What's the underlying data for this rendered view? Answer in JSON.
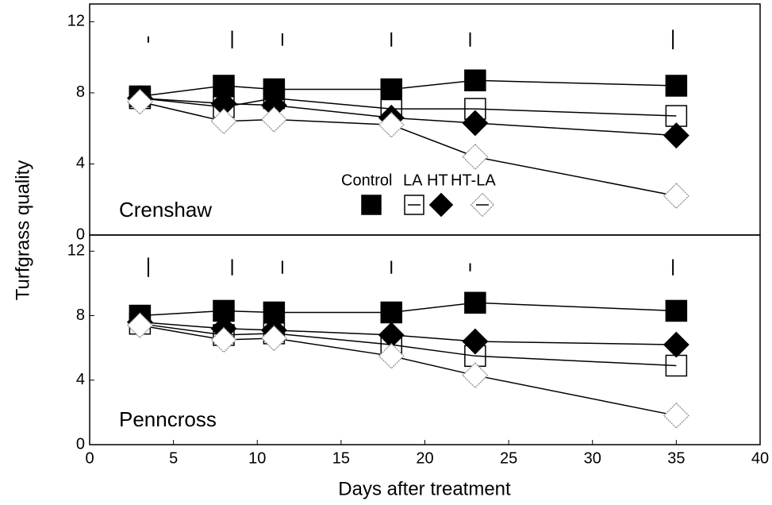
{
  "chart_data": [
    {
      "type": "line",
      "title": "Crenshaw",
      "ylabel": "Turfgrass quality",
      "x": [
        3,
        8,
        11,
        18,
        23,
        35
      ],
      "series": [
        {
          "name": "Control",
          "marker": "square",
          "color": "#000000",
          "fill": "#000000",
          "values": [
            7.8,
            8.4,
            8.2,
            8.2,
            8.7,
            8.4
          ]
        },
        {
          "name": "LA",
          "marker": "square",
          "color": "#000000",
          "fill": "none",
          "values": [
            7.7,
            7.2,
            7.7,
            7.1,
            7.1,
            6.7
          ]
        },
        {
          "name": "HT",
          "marker": "diamond",
          "color": "#000000",
          "fill": "#000000",
          "values": [
            7.7,
            7.4,
            7.3,
            6.6,
            6.3,
            5.6
          ]
        },
        {
          "name": "HT-LA",
          "marker": "diamond",
          "color": "#888888",
          "fill": "#ffffff",
          "values": [
            7.5,
            6.4,
            6.5,
            6.2,
            4.4,
            2.2
          ]
        }
      ],
      "lsd": {
        "center": 11,
        "x": [
          3.5,
          8.5,
          11.5,
          18,
          22.7,
          34.8
        ],
        "values": [
          0.35,
          1.0,
          0.7,
          0.8,
          0.8,
          1.1
        ]
      },
      "xlim": [
        0,
        40
      ],
      "ylim": [
        0,
        13
      ],
      "yticks": [
        0,
        4,
        8,
        12
      ]
    },
    {
      "type": "line",
      "title": "Penncross",
      "xlabel": "Days after treatment",
      "x": [
        3,
        8,
        11,
        18,
        23,
        35
      ],
      "series": [
        {
          "marker": "square",
          "color": "#000000",
          "fill": "#000000",
          "values": [
            8.0,
            8.3,
            8.2,
            8.2,
            8.8,
            8.3
          ]
        },
        {
          "marker": "square",
          "color": "#000000",
          "fill": "none",
          "values": [
            7.5,
            6.8,
            6.9,
            6.2,
            5.5,
            4.9
          ]
        },
        {
          "marker": "diamond",
          "color": "#000000",
          "fill": "#000000",
          "values": [
            7.6,
            7.2,
            7.1,
            6.8,
            6.4,
            6.2
          ]
        },
        {
          "marker": "diamond",
          "color": "#888888",
          "fill": "#ffffff",
          "values": [
            7.4,
            6.5,
            6.6,
            5.5,
            4.3,
            1.8
          ]
        }
      ],
      "lsd": {
        "center": 11,
        "x": [
          3.5,
          8.5,
          11.5,
          18,
          22.7,
          34.8
        ],
        "values": [
          1.2,
          1.0,
          0.8,
          0.8,
          0.5,
          1.0
        ]
      },
      "xlim": [
        0,
        40
      ],
      "xticks": [
        0,
        5,
        10,
        15,
        20,
        25,
        30,
        35,
        40
      ],
      "ylim": [
        0,
        13
      ],
      "yticks": [
        0,
        4,
        8,
        12
      ]
    }
  ]
}
